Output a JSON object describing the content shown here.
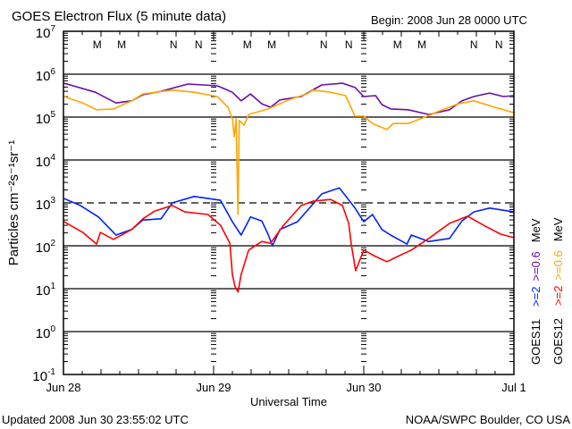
{
  "header": {
    "title": "GOES Electron Flux (5 minute data)",
    "begin": "Begin: 2008 Jun 28 0000 UTC"
  },
  "footer": {
    "updated": "Updated 2008 Jun 30 23:55:02 UTC",
    "credit": "NOAA/SWPC Boulder, CO USA"
  },
  "legend": {
    "goes11": {
      "sat": "GOES11",
      "e2": ">=2",
      "e06": ">=0.6",
      "unit": "MeV"
    },
    "goes12": {
      "sat": "GOES12",
      "e2": ">=2",
      "e06": ">=0.6",
      "unit": "MeV"
    }
  },
  "colors": {
    "goes11_2": "#0022ff",
    "goes11_06": "#6a0cae",
    "goes12_2": "#ff0000",
    "goes12_06": "#ffa500"
  },
  "chart_data": {
    "type": "line",
    "title": "GOES Electron Flux (5 minute data)",
    "xlabel": "Universal Time",
    "ylabel": "Particles cm⁻²s⁻¹sr⁻¹",
    "yscale": "log",
    "ylim_log10": [
      -1,
      7
    ],
    "xlim_hours": [
      0,
      72
    ],
    "x_units": "hours since 2008 Jun 28 0000 UTC",
    "y_units": "log10 flux",
    "x_tick_labels": [
      {
        "hour": 0,
        "label": "Jun 28"
      },
      {
        "hour": 24,
        "label": "Jun 29"
      },
      {
        "hour": 48,
        "label": "Jun 30"
      },
      {
        "hour": 72,
        "label": "Jul 1"
      }
    ],
    "y_tick_exponents": [
      "7",
      "6",
      "5",
      "4",
      "3",
      "2",
      "1",
      "0",
      "-1"
    ],
    "y_tick_base": "10",
    "grid": "major decades solid, 10^3 dashed threshold",
    "threshold_log10": 3,
    "markers": [
      {
        "label": "M",
        "color": "#ff0000",
        "hours": [
          5.4,
          29.4,
          53.4
        ]
      },
      {
        "label": "M",
        "color": "#0022ff",
        "hours": [
          9.3,
          33.3,
          57.3
        ]
      },
      {
        "label": "N",
        "color": "#ff0000",
        "hours": [
          17.6,
          41.6,
          65.6
        ]
      },
      {
        "label": "N",
        "color": "#0022ff",
        "hours": [
          21.6,
          45.6,
          69.6
        ]
      }
    ],
    "series": [
      {
        "name": "GOES11 >=0.6 MeV",
        "color": "#6a0cae",
        "hours": [
          0.1,
          5.1,
          8.4,
          10.9,
          12.7,
          15.6,
          19.9,
          24.6,
          27.0,
          28.4,
          29.9,
          31.7,
          33.1,
          34.6,
          38.0,
          41.3,
          44.6,
          46.6,
          48.0,
          49.9,
          50.9,
          52.3,
          55.1,
          58.4,
          61.7,
          63.7,
          65.6,
          68.1,
          70.3,
          72.0
        ],
        "log10_flux": [
          5.79,
          5.58,
          5.33,
          5.38,
          5.52,
          5.6,
          5.77,
          5.73,
          5.58,
          5.38,
          5.54,
          5.31,
          5.23,
          5.4,
          5.48,
          5.75,
          5.79,
          5.69,
          5.48,
          5.5,
          5.29,
          5.19,
          5.17,
          5.06,
          5.17,
          5.38,
          5.48,
          5.56,
          5.48,
          5.5
        ]
      },
      {
        "name": "GOES12 >=0.6 MeV",
        "color": "#ffa500",
        "hours": [
          0.1,
          3.1,
          5.3,
          8.0,
          10.9,
          12.7,
          17.4,
          20.9,
          24.6,
          26.3,
          27.0,
          27.3,
          27.6,
          27.9,
          28.1,
          28.9,
          29.6,
          32.7,
          36.0,
          38.9,
          39.9,
          42.7,
          45.1,
          46.6,
          48.0,
          49.4,
          51.7,
          52.7,
          55.1,
          57.4,
          59.9,
          63.1,
          65.6,
          68.0,
          72.0
        ],
        "log10_flux": [
          5.48,
          5.33,
          5.17,
          5.19,
          5.38,
          5.54,
          5.63,
          5.58,
          5.48,
          5.23,
          4.96,
          4.54,
          4.96,
          2.73,
          4.92,
          4.81,
          5.06,
          5.19,
          5.4,
          5.54,
          5.63,
          5.58,
          5.5,
          5.02,
          5.02,
          4.85,
          4.71,
          4.85,
          4.85,
          4.98,
          5.13,
          5.31,
          5.38,
          5.27,
          5.1
        ]
      },
      {
        "name": "GOES11 >=2 MeV",
        "color": "#0022ff",
        "hours": [
          0.1,
          2.7,
          5.6,
          8.4,
          10.9,
          12.7,
          15.6,
          17.4,
          20.9,
          25.1,
          27.0,
          28.4,
          29.9,
          31.7,
          32.7,
          33.4,
          34.6,
          37.4,
          41.3,
          44.1,
          46.6,
          48.0,
          49.4,
          50.9,
          52.3,
          54.9,
          55.6,
          58.4,
          61.7,
          63.7,
          65.6,
          68.1,
          72.0
        ],
        "log10_flux": [
          3.1,
          2.94,
          2.67,
          2.25,
          2.38,
          2.6,
          2.63,
          3.0,
          3.15,
          3.06,
          2.56,
          2.25,
          2.67,
          2.58,
          2.27,
          2.0,
          2.38,
          2.56,
          3.21,
          3.35,
          2.88,
          2.56,
          2.73,
          2.38,
          2.25,
          2.04,
          2.25,
          2.1,
          2.17,
          2.58,
          2.79,
          2.88,
          2.79
        ]
      },
      {
        "name": "GOES12 >=2 MeV",
        "color": "#ff0000",
        "hours": [
          0.1,
          3.1,
          5.3,
          5.9,
          8.0,
          10.9,
          12.7,
          14.6,
          17.4,
          19.4,
          23.1,
          25.1,
          26.6,
          27.0,
          27.4,
          27.9,
          28.4,
          29.6,
          31.7,
          33.1,
          35.1,
          38.0,
          39.9,
          42.7,
          44.6,
          45.6,
          46.0,
          46.7,
          48.0,
          49.9,
          51.7,
          53.1,
          55.6,
          58.4,
          61.7,
          64.6,
          67.4,
          69.9,
          72.0
        ],
        "log10_flux": [
          2.56,
          2.31,
          2.04,
          2.31,
          2.15,
          2.38,
          2.63,
          2.81,
          2.94,
          2.79,
          2.73,
          2.48,
          2.06,
          1.33,
          1.06,
          0.92,
          1.33,
          1.9,
          2.1,
          2.06,
          2.46,
          2.94,
          3.04,
          3.08,
          2.94,
          2.52,
          2.04,
          1.42,
          1.9,
          1.75,
          1.63,
          1.73,
          1.9,
          2.17,
          2.52,
          2.69,
          2.46,
          2.27,
          2.19
        ]
      }
    ]
  }
}
